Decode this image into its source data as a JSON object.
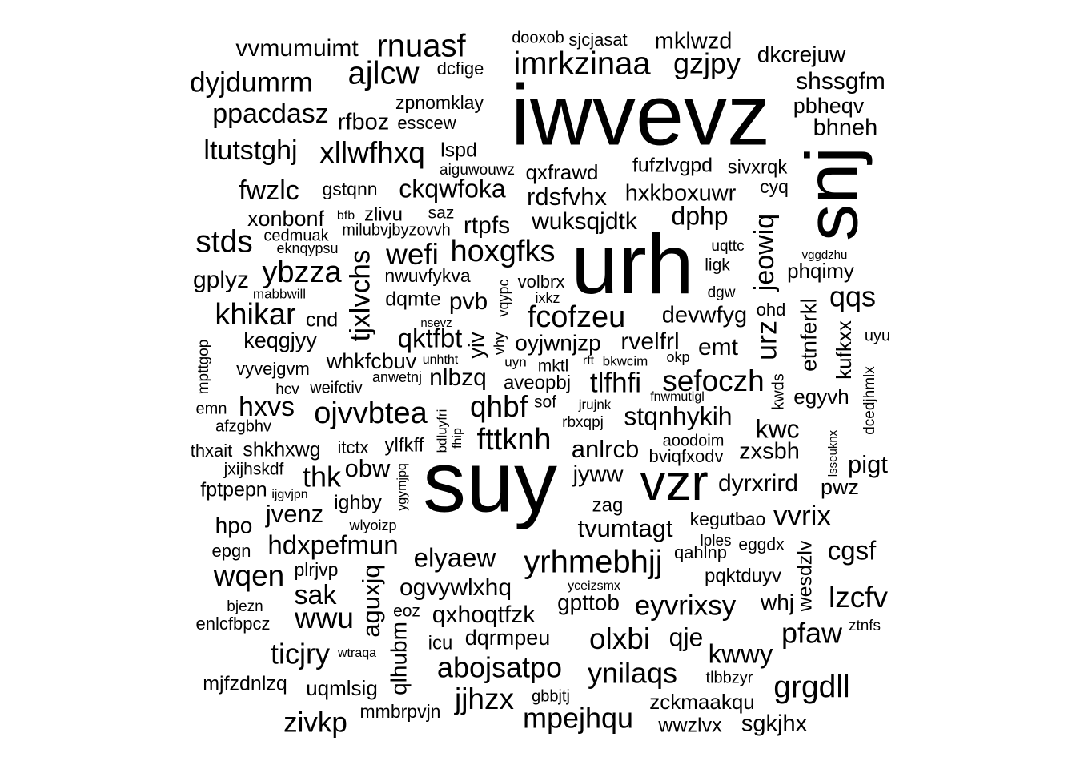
{
  "words": [
    {
      "text": "iwvevz",
      "weight": 95
    },
    {
      "text": "suy",
      "weight": 92
    },
    {
      "text": "urh",
      "weight": 90
    },
    {
      "text": "snj",
      "weight": 78
    },
    {
      "text": "vzr",
      "weight": 60
    },
    {
      "text": "rnuasf",
      "weight": 38
    },
    {
      "text": "imrkzinaa",
      "weight": 38
    },
    {
      "text": "ajlcw",
      "weight": 38
    },
    {
      "text": "gzjpy",
      "weight": 35
    },
    {
      "text": "mklwzd",
      "weight": 29
    },
    {
      "text": "vvmumuimt",
      "weight": 30
    },
    {
      "text": "dooxob",
      "weight": 20
    },
    {
      "text": "sjcjasat",
      "weight": 22
    },
    {
      "text": "dkcrejuw",
      "weight": 28
    },
    {
      "text": "dyjdumrm",
      "weight": 34
    },
    {
      "text": "dcfige",
      "weight": 21
    },
    {
      "text": "shssgfm",
      "weight": 30
    },
    {
      "text": "zpnomklay",
      "weight": 22
    },
    {
      "text": "ppacdasz",
      "weight": 33
    },
    {
      "text": "pbheqv",
      "weight": 27
    },
    {
      "text": "rfboz",
      "weight": 28
    },
    {
      "text": "esscew",
      "weight": 22
    },
    {
      "text": "bhneh",
      "weight": 29
    },
    {
      "text": "ltutstghj",
      "weight": 33
    },
    {
      "text": "xllwfhxq",
      "weight": 36
    },
    {
      "text": "lspd",
      "weight": 24
    },
    {
      "text": "aiguwouwz",
      "weight": 19
    },
    {
      "text": "qxfrawd",
      "weight": 26
    },
    {
      "text": "fufzlvgpd",
      "weight": 25
    },
    {
      "text": "sivxrqk",
      "weight": 24
    },
    {
      "text": "fwzlc",
      "weight": 33
    },
    {
      "text": "gstqnn",
      "weight": 23
    },
    {
      "text": "ckqwfoka",
      "weight": 32
    },
    {
      "text": "rdsfvhx",
      "weight": 30
    },
    {
      "text": "hxkboxuwr",
      "weight": 29
    },
    {
      "text": "cyq",
      "weight": 23
    },
    {
      "text": "xonbonf",
      "weight": 26
    },
    {
      "text": "bfb",
      "weight": 16
    },
    {
      "text": "zlivu",
      "weight": 24
    },
    {
      "text": "saz",
      "weight": 21
    },
    {
      "text": "rtpfs",
      "weight": 29
    },
    {
      "text": "wuksqjdtk",
      "weight": 30
    },
    {
      "text": "dphp",
      "weight": 31
    },
    {
      "text": "jeowiq",
      "weight": 33
    },
    {
      "text": "cedmuak",
      "weight": 20
    },
    {
      "text": "milubvjbyzovvh",
      "weight": 20
    },
    {
      "text": "stds",
      "weight": 38
    },
    {
      "text": "eknqypsu",
      "weight": 18
    },
    {
      "text": "wefi",
      "weight": 36
    },
    {
      "text": "hoxgfks",
      "weight": 37
    },
    {
      "text": "uqttc",
      "weight": 19
    },
    {
      "text": "vggdzhu",
      "weight": 15
    },
    {
      "text": "tjxlvchs",
      "weight": 34
    },
    {
      "text": "ligk",
      "weight": 21
    },
    {
      "text": "phqimy",
      "weight": 26
    },
    {
      "text": "gplyz",
      "weight": 30
    },
    {
      "text": "ybzza",
      "weight": 37
    },
    {
      "text": "nwuvfykva",
      "weight": 23
    },
    {
      "text": "vqypc",
      "weight": 18
    },
    {
      "text": "volbrx",
      "weight": 22
    },
    {
      "text": "mabbwill",
      "weight": 17
    },
    {
      "text": "dqmte",
      "weight": 25
    },
    {
      "text": "pvb",
      "weight": 30
    },
    {
      "text": "ixkz",
      "weight": 18
    },
    {
      "text": "dgw",
      "weight": 19
    },
    {
      "text": "qqs",
      "weight": 35
    },
    {
      "text": "khikar",
      "weight": 38
    },
    {
      "text": "fcofzeu",
      "weight": 37
    },
    {
      "text": "devwfyg",
      "weight": 29
    },
    {
      "text": "ohd",
      "weight": 22
    },
    {
      "text": "cnd",
      "weight": 25
    },
    {
      "text": "nsevz",
      "weight": 15
    },
    {
      "text": "urz",
      "weight": 35
    },
    {
      "text": "etnferkl",
      "weight": 28
    },
    {
      "text": "kufkxx",
      "weight": 26
    },
    {
      "text": "uyu",
      "weight": 20
    },
    {
      "text": "keqgjyy",
      "weight": 27
    },
    {
      "text": "qktfbt",
      "weight": 33
    },
    {
      "text": "yiv",
      "weight": 26
    },
    {
      "text": "vhy",
      "weight": 18
    },
    {
      "text": "oyjwnjzp",
      "weight": 28
    },
    {
      "text": "rvelfrl",
      "weight": 30
    },
    {
      "text": "emt",
      "weight": 30
    },
    {
      "text": "mpttgop",
      "weight": 19
    },
    {
      "text": "unhtht",
      "weight": 16
    },
    {
      "text": "uyn",
      "weight": 17
    },
    {
      "text": "rft",
      "weight": 16
    },
    {
      "text": "bkwcim",
      "weight": 17
    },
    {
      "text": "okp",
      "weight": 18
    },
    {
      "text": "whkfcbuv",
      "weight": 27
    },
    {
      "text": "mktl",
      "weight": 21
    },
    {
      "text": "vyvejgvm",
      "weight": 22
    },
    {
      "text": "anwetnj",
      "weight": 18
    },
    {
      "text": "nlbzq",
      "weight": 30
    },
    {
      "text": "aveopbj",
      "weight": 24
    },
    {
      "text": "tlfhfi",
      "weight": 34
    },
    {
      "text": "sefoczh",
      "weight": 36
    },
    {
      "text": "dcedjhmlx",
      "weight": 19
    },
    {
      "text": "hcv",
      "weight": 19
    },
    {
      "text": "weifctiv",
      "weight": 20
    },
    {
      "text": "kwds",
      "weight": 20
    },
    {
      "text": "egyvh",
      "weight": 26
    },
    {
      "text": "emn",
      "weight": 20
    },
    {
      "text": "hxvs",
      "weight": 33
    },
    {
      "text": "ojvvbtea",
      "weight": 37
    },
    {
      "text": "qhbf",
      "weight": 36
    },
    {
      "text": "sof",
      "weight": 21
    },
    {
      "text": "jrujnk",
      "weight": 17
    },
    {
      "text": "fnwmutigl",
      "weight": 16
    },
    {
      "text": "afzgbhv",
      "weight": 20
    },
    {
      "text": "bdluyfri",
      "weight": 17
    },
    {
      "text": "rbxqpj",
      "weight": 19
    },
    {
      "text": "stqnhykih",
      "weight": 31
    },
    {
      "text": "kwc",
      "weight": 31
    },
    {
      "text": "lsseuknx",
      "weight": 15
    },
    {
      "text": "fhip",
      "weight": 16
    },
    {
      "text": "fttknh",
      "weight": 37
    },
    {
      "text": "aoodoim",
      "weight": 20
    },
    {
      "text": "thxait",
      "weight": 22
    },
    {
      "text": "shkhxwg",
      "weight": 25
    },
    {
      "text": "itctx",
      "weight": 22
    },
    {
      "text": "ylfkff",
      "weight": 24
    },
    {
      "text": "anlrcb",
      "weight": 30
    },
    {
      "text": "bviqfxodv",
      "weight": 22
    },
    {
      "text": "zxsbh",
      "weight": 29
    },
    {
      "text": "jxijhskdf",
      "weight": 21
    },
    {
      "text": "obw",
      "weight": 30
    },
    {
      "text": "pigt",
      "weight": 30
    },
    {
      "text": "thk",
      "weight": 35
    },
    {
      "text": "jyww",
      "weight": 29
    },
    {
      "text": "fptpepn",
      "weight": 25
    },
    {
      "text": "ijgvjpn",
      "weight": 16
    },
    {
      "text": "ygymjpq",
      "weight": 16
    },
    {
      "text": "dyrxrird",
      "weight": 29
    },
    {
      "text": "pwz",
      "weight": 27
    },
    {
      "text": "ighby",
      "weight": 25
    },
    {
      "text": "zag",
      "weight": 24
    },
    {
      "text": "jvenz",
      "weight": 30
    },
    {
      "text": "kegutbao",
      "weight": 23
    },
    {
      "text": "vvrix",
      "weight": 34
    },
    {
      "text": "hpo",
      "weight": 28
    },
    {
      "text": "wlyoizp",
      "weight": 18
    },
    {
      "text": "tvumtagt",
      "weight": 31
    },
    {
      "text": "lples",
      "weight": 19
    },
    {
      "text": "eggdx",
      "weight": 21
    },
    {
      "text": "epgn",
      "weight": 22
    },
    {
      "text": "hdxpefmun",
      "weight": 33
    },
    {
      "text": "qahlnp",
      "weight": 22
    },
    {
      "text": "cgsf",
      "weight": 32
    },
    {
      "text": "elyaew",
      "weight": 32
    },
    {
      "text": "yrhmebhjj",
      "weight": 39
    },
    {
      "text": "wesdzlv",
      "weight": 25
    },
    {
      "text": "wqen",
      "weight": 36
    },
    {
      "text": "plrjvp",
      "weight": 23
    },
    {
      "text": "pqktduyv",
      "weight": 24
    },
    {
      "text": "aguxjq",
      "weight": 31
    },
    {
      "text": "yceizsmx",
      "weight": 16
    },
    {
      "text": "ogvywlxhq",
      "weight": 29
    },
    {
      "text": "sak",
      "weight": 33
    },
    {
      "text": "lzcfv",
      "weight": 36
    },
    {
      "text": "gpttob",
      "weight": 28
    },
    {
      "text": "eyvrixsy",
      "weight": 35
    },
    {
      "text": "whj",
      "weight": 27
    },
    {
      "text": "bjezn",
      "weight": 19
    },
    {
      "text": "eoz",
      "weight": 21
    },
    {
      "text": "wwu",
      "weight": 36
    },
    {
      "text": "qxhoqtfzk",
      "weight": 30
    },
    {
      "text": "enlcfbpcz",
      "weight": 22
    },
    {
      "text": "ztnfs",
      "weight": 19
    },
    {
      "text": "pfaw",
      "weight": 35
    },
    {
      "text": "icu",
      "weight": 24
    },
    {
      "text": "dqrmpeu",
      "weight": 27
    },
    {
      "text": "olxbi",
      "weight": 36
    },
    {
      "text": "qje",
      "weight": 31
    },
    {
      "text": "qlhubm",
      "weight": 27
    },
    {
      "text": "ticjry",
      "weight": 35
    },
    {
      "text": "wtraqa",
      "weight": 16
    },
    {
      "text": "kwwy",
      "weight": 32
    },
    {
      "text": "abojsatpo",
      "weight": 35
    },
    {
      "text": "ynilaqs",
      "weight": 35
    },
    {
      "text": "grgdll",
      "weight": 38
    },
    {
      "text": "mjfzdnlzq",
      "weight": 25
    },
    {
      "text": "uqmlsig",
      "weight": 26
    },
    {
      "text": "tlbbzyr",
      "weight": 20
    },
    {
      "text": "jjhzx",
      "weight": 36
    },
    {
      "text": "gbbjtj",
      "weight": 20
    },
    {
      "text": "zckmaakqu",
      "weight": 26
    },
    {
      "text": "mmbrpvjn",
      "weight": 22
    },
    {
      "text": "zivkp",
      "weight": 34
    },
    {
      "text": "mpejhqu",
      "weight": 35
    },
    {
      "text": "wwzlvx",
      "weight": 24
    },
    {
      "text": "sgkjhx",
      "weight": 28
    }
  ]
}
